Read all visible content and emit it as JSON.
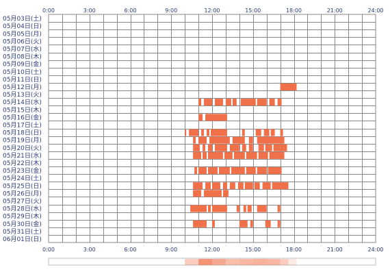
{
  "chart_data": {
    "type": "heatmap",
    "x_ticks": [
      "0:00",
      "3:00",
      "6:00",
      "9:00",
      "12:00",
      "15:00",
      "18:00",
      "21:00",
      "24:00"
    ],
    "xlim": [
      0,
      24
    ],
    "grid": true,
    "rows": [
      "05月03日(土)",
      "05月04日(日)",
      "05月05日(月)",
      "05月06日(火)",
      "05月07日(水)",
      "05月08日(木)",
      "05月09日(金)",
      "05月10日(土)",
      "05月11日(日)",
      "05月12日(月)",
      "05月13日(火)",
      "05月14日(水)",
      "05月15日(木)",
      "05月16日(金)",
      "05月17日(土)",
      "05月18日(日)",
      "05月19日(月)",
      "05月20日(火)",
      "05月21日(水)",
      "05月22日(木)",
      "05月23日(金)",
      "05月24日(土)",
      "05月25日(日)",
      "05月26日(月)",
      "05月27日(火)",
      "05月28日(水)",
      "05月29日(木)",
      "05月30日(金)",
      "05月31日(土)",
      "06月01日(日)"
    ],
    "bar_color": "#f0704a",
    "activity": [
      {
        "row": "05月12日(月)",
        "intervals": [
          [
            17.0,
            18.2
          ]
        ]
      },
      {
        "row": "05月14日(水)",
        "intervals": [
          [
            11.0,
            11.2
          ],
          [
            11.4,
            12.0
          ],
          [
            12.2,
            12.8
          ],
          [
            13.0,
            13.4
          ],
          [
            13.5,
            13.8
          ],
          [
            14.1,
            15.2
          ],
          [
            15.3,
            16.0
          ],
          [
            16.2,
            16.6
          ],
          [
            16.8,
            17.1
          ]
        ]
      },
      {
        "row": "05月16日(金)",
        "intervals": [
          [
            11.0,
            11.3
          ],
          [
            11.5,
            13.1
          ]
        ]
      },
      {
        "row": "05月18日(日)",
        "intervals": [
          [
            10.0,
            10.1
          ],
          [
            10.3,
            11.0
          ],
          [
            11.2,
            11.4
          ],
          [
            11.6,
            11.8
          ],
          [
            11.9,
            13.1
          ],
          [
            14.2,
            14.4
          ],
          [
            15.2,
            15.6
          ],
          [
            15.8,
            16.2
          ],
          [
            16.3,
            16.6
          ],
          [
            17.0,
            17.2
          ]
        ]
      },
      {
        "row": "05月19日(月)",
        "intervals": [
          [
            10.6,
            10.8
          ],
          [
            11.0,
            11.6
          ],
          [
            11.8,
            13.3
          ],
          [
            13.5,
            14.4
          ],
          [
            14.7,
            15.0
          ],
          [
            15.3,
            17.3
          ]
        ]
      },
      {
        "row": "05月20日(火)",
        "intervals": [
          [
            10.6,
            11.1
          ],
          [
            11.3,
            11.5
          ],
          [
            11.7,
            12.0
          ],
          [
            12.2,
            13.1
          ],
          [
            13.3,
            14.0
          ],
          [
            14.2,
            14.5
          ],
          [
            14.7,
            15.0
          ],
          [
            15.4,
            15.8
          ],
          [
            15.9,
            16.4
          ],
          [
            16.5,
            17.5
          ]
        ]
      },
      {
        "row": "05月21日(水)",
        "intervals": [
          [
            10.6,
            11.2
          ],
          [
            11.3,
            11.6
          ],
          [
            11.7,
            12.8
          ],
          [
            12.9,
            13.5
          ],
          [
            13.6,
            14.4
          ],
          [
            14.5,
            15.3
          ],
          [
            15.4,
            16.1
          ],
          [
            16.2,
            17.3
          ]
        ]
      },
      {
        "row": "05月23日(金)",
        "intervals": [
          [
            10.7,
            10.9
          ],
          [
            11.0,
            11.6
          ],
          [
            11.7,
            12.4
          ],
          [
            12.5,
            13.3
          ],
          [
            13.4,
            14.4
          ],
          [
            14.5,
            15.2
          ],
          [
            15.3,
            16.0
          ],
          [
            16.1,
            17.1
          ]
        ]
      },
      {
        "row": "05月25日(日)",
        "intervals": [
          [
            10.6,
            11.3
          ],
          [
            11.5,
            11.9
          ],
          [
            12.0,
            12.6
          ],
          [
            12.8,
            13.1
          ],
          [
            13.3,
            13.7
          ],
          [
            13.9,
            14.3
          ],
          [
            14.4,
            15.0
          ],
          [
            15.1,
            15.5
          ],
          [
            15.7,
            16.3
          ],
          [
            16.4,
            17.6
          ]
        ]
      },
      {
        "row": "05月26日(月)",
        "intervals": [
          [
            10.6,
            11.2
          ],
          [
            11.4,
            12.7
          ],
          [
            12.8,
            13.2
          ]
        ]
      },
      {
        "row": "05月28日(水)",
        "intervals": [
          [
            10.4,
            11.6
          ],
          [
            11.7,
            11.9
          ],
          [
            12.0,
            13.1
          ],
          [
            13.8,
            14.0
          ],
          [
            14.3,
            14.5
          ],
          [
            14.6,
            14.9
          ],
          [
            15.3,
            16.0
          ],
          [
            16.8,
            17.0
          ]
        ]
      },
      {
        "row": "05月30日(金)",
        "intervals": [
          [
            10.6,
            11.6
          ],
          [
            12.0,
            12.2
          ],
          [
            14.0,
            14.6
          ],
          [
            14.8,
            15.0
          ],
          [
            15.9,
            16.3
          ],
          [
            16.8,
            17.0
          ]
        ]
      }
    ],
    "summary_strip": {
      "color": "#f0704a",
      "density": [
        {
          "from": 10.0,
          "to": 11.0,
          "level": 0.35
        },
        {
          "from": 11.0,
          "to": 12.0,
          "level": 0.75
        },
        {
          "from": 12.0,
          "to": 13.0,
          "level": 0.6
        },
        {
          "from": 13.0,
          "to": 14.0,
          "level": 0.45
        },
        {
          "from": 14.0,
          "to": 15.0,
          "level": 0.5
        },
        {
          "from": 15.0,
          "to": 16.0,
          "level": 0.55
        },
        {
          "from": 16.0,
          "to": 17.0,
          "level": 0.5
        },
        {
          "from": 17.0,
          "to": 17.6,
          "level": 0.35
        },
        {
          "from": 17.6,
          "to": 18.2,
          "level": 0.15
        }
      ]
    }
  }
}
